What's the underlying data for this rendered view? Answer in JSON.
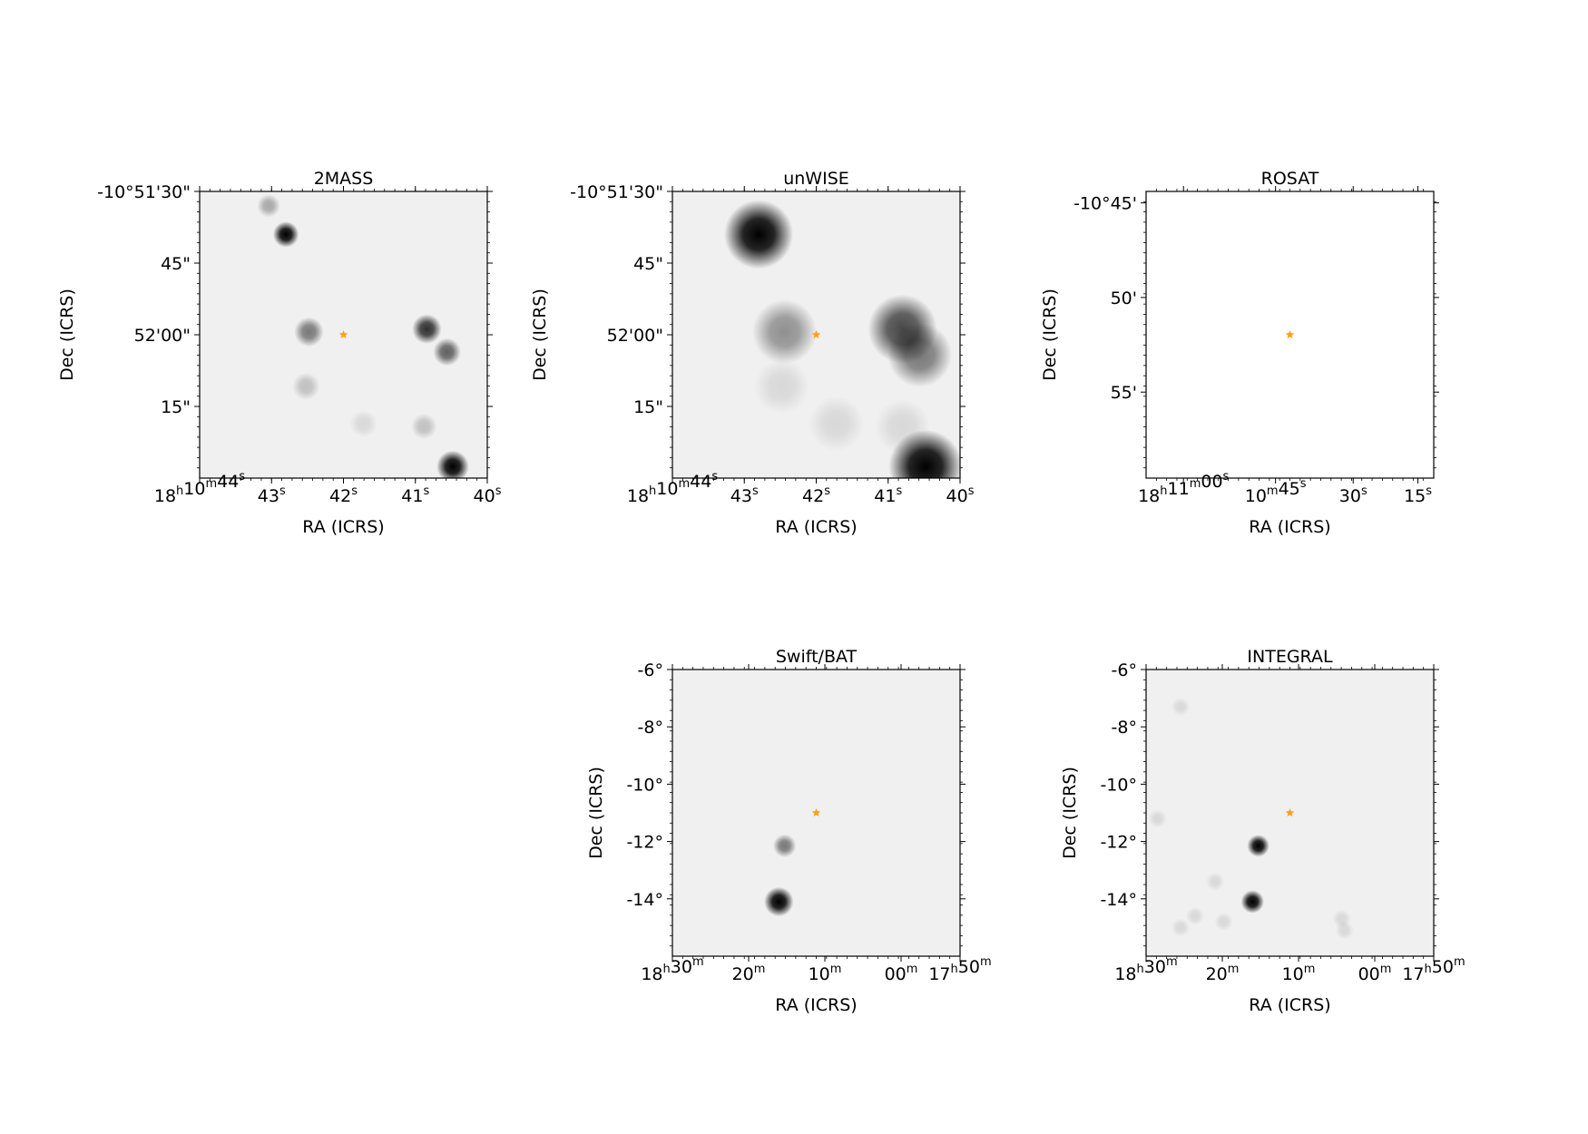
{
  "figure": {
    "panels": [
      {
        "id": "2mass",
        "title": "2MASS",
        "xlabel": "RA (ICRS)",
        "ylabel": "Dec (ICRS)",
        "xticks": [
          {
            "main": "18",
            "sup1": "h",
            "mid": "10",
            "sup2": "m",
            "mid2": "44",
            "sup3": "s",
            "f": 0.0
          },
          {
            "main": "43",
            "sup1": "s",
            "f": 0.25
          },
          {
            "main": "42",
            "sup1": "s",
            "f": 0.5
          },
          {
            "main": "41",
            "sup1": "s",
            "f": 0.75
          },
          {
            "main": "40",
            "sup1": "s",
            "f": 1.0
          }
        ],
        "yticks": [
          {
            "label": "-10°51'30\"",
            "f": 0.0
          },
          {
            "label": "45\"",
            "f": 0.25
          },
          {
            "label": "52'00\"",
            "f": 0.5
          },
          {
            "label": "15\"",
            "f": 0.75
          }
        ],
        "marker": {
          "fx": 0.5,
          "fy": 0.5
        },
        "sources": [
          {
            "fx": 0.3,
            "fy": 0.15,
            "r": 0.028,
            "intensity": 0.98
          },
          {
            "fx": 0.24,
            "fy": 0.05,
            "r": 0.025,
            "intensity": 0.25
          },
          {
            "fx": 0.38,
            "fy": 0.49,
            "r": 0.032,
            "intensity": 0.45
          },
          {
            "fx": 0.79,
            "fy": 0.48,
            "r": 0.032,
            "intensity": 0.75
          },
          {
            "fx": 0.86,
            "fy": 0.56,
            "r": 0.03,
            "intensity": 0.55
          },
          {
            "fx": 0.37,
            "fy": 0.68,
            "r": 0.03,
            "intensity": 0.18
          },
          {
            "fx": 0.57,
            "fy": 0.81,
            "r": 0.03,
            "intensity": 0.12
          },
          {
            "fx": 0.78,
            "fy": 0.82,
            "r": 0.028,
            "intensity": 0.15
          },
          {
            "fx": 0.88,
            "fy": 0.96,
            "r": 0.035,
            "intensity": 1.0
          }
        ]
      },
      {
        "id": "unwise",
        "title": "unWISE",
        "xlabel": "RA (ICRS)",
        "ylabel": "Dec (ICRS)",
        "xticks": [
          {
            "main": "18",
            "sup1": "h",
            "mid": "10",
            "sup2": "m",
            "mid2": "44",
            "sup3": "s",
            "f": 0.0
          },
          {
            "main": "43",
            "sup1": "s",
            "f": 0.25
          },
          {
            "main": "42",
            "sup1": "s",
            "f": 0.5
          },
          {
            "main": "41",
            "sup1": "s",
            "f": 0.75
          },
          {
            "main": "40",
            "sup1": "s",
            "f": 1.0
          }
        ],
        "yticks": [
          {
            "label": "-10°51'30\"",
            "f": 0.0
          },
          {
            "label": "45\"",
            "f": 0.25
          },
          {
            "label": "52'00\"",
            "f": 0.5
          },
          {
            "label": "15\"",
            "f": 0.75
          }
        ],
        "marker": {
          "fx": 0.5,
          "fy": 0.5
        },
        "sources": [
          {
            "fx": 0.3,
            "fy": 0.15,
            "r": 0.075,
            "intensity": 0.98
          },
          {
            "fx": 0.39,
            "fy": 0.49,
            "r": 0.07,
            "intensity": 0.35
          },
          {
            "fx": 0.8,
            "fy": 0.48,
            "r": 0.075,
            "intensity": 0.65
          },
          {
            "fx": 0.86,
            "fy": 0.57,
            "r": 0.07,
            "intensity": 0.45
          },
          {
            "fx": 0.38,
            "fy": 0.68,
            "r": 0.06,
            "intensity": 0.1
          },
          {
            "fx": 0.57,
            "fy": 0.81,
            "r": 0.06,
            "intensity": 0.08
          },
          {
            "fx": 0.8,
            "fy": 0.82,
            "r": 0.06,
            "intensity": 0.08
          },
          {
            "fx": 0.88,
            "fy": 0.96,
            "r": 0.08,
            "intensity": 1.0
          }
        ]
      },
      {
        "id": "rosat",
        "title": "ROSAT",
        "xlabel": "RA (ICRS)",
        "ylabel": "Dec (ICRS)",
        "xticks": [
          {
            "main": "18",
            "sup1": "h",
            "mid": "11",
            "sup2": "m",
            "mid2": "00",
            "sup3": "s",
            "f": 0.13
          },
          {
            "main": "10",
            "sup1": "m",
            "mid": "45",
            "sup2": "s",
            "f": 0.45
          },
          {
            "main": "30",
            "sup1": "s",
            "f": 0.72
          },
          {
            "main": "15",
            "sup1": "s",
            "f": 0.945
          }
        ],
        "yticks": [
          {
            "label": "-10°45'",
            "f": 0.04
          },
          {
            "label": "50'",
            "f": 0.37
          },
          {
            "label": "55'",
            "f": 0.7
          }
        ],
        "marker": {
          "fx": 0.5,
          "fy": 0.5
        },
        "sources": []
      },
      {
        "id": "swiftbat",
        "title": "Swift/BAT",
        "xlabel": "RA (ICRS)",
        "ylabel": "Dec (ICRS)",
        "xticks": [
          {
            "main": "18",
            "sup1": "h",
            "mid": "30",
            "sup2": "m",
            "f": 0.0
          },
          {
            "main": "20",
            "sup1": "m",
            "f": 0.265
          },
          {
            "main": "10",
            "sup1": "m",
            "f": 0.53
          },
          {
            "main": "00",
            "sup1": "m",
            "f": 0.795
          },
          {
            "main": "17",
            "sup1": "h",
            "mid": "50",
            "sup2": "m",
            "f": 1.0
          }
        ],
        "yticks": [
          {
            "label": "-6°",
            "f": 0.0
          },
          {
            "label": "-8°",
            "f": 0.2
          },
          {
            "label": "-10°",
            "f": 0.4
          },
          {
            "label": "-12°",
            "f": 0.6
          },
          {
            "label": "-14°",
            "f": 0.8
          }
        ],
        "marker": {
          "fx": 0.5,
          "fy": 0.5
        },
        "sources": [
          {
            "fx": 0.39,
            "fy": 0.615,
            "r": 0.025,
            "intensity": 0.45
          },
          {
            "fx": 0.37,
            "fy": 0.81,
            "r": 0.032,
            "intensity": 1.0
          }
        ]
      },
      {
        "id": "integral",
        "title": "INTEGRAL",
        "xlabel": "RA (ICRS)",
        "ylabel": "Dec (ICRS)",
        "xticks": [
          {
            "main": "18",
            "sup1": "h",
            "mid": "30",
            "sup2": "m",
            "f": 0.0
          },
          {
            "main": "20",
            "sup1": "m",
            "f": 0.265
          },
          {
            "main": "10",
            "sup1": "m",
            "f": 0.53
          },
          {
            "main": "00",
            "sup1": "m",
            "f": 0.795
          },
          {
            "main": "17",
            "sup1": "h",
            "mid": "50",
            "sup2": "m",
            "f": 1.0
          }
        ],
        "yticks": [
          {
            "label": "-6°",
            "f": 0.0
          },
          {
            "label": "-8°",
            "f": 0.2
          },
          {
            "label": "-10°",
            "f": 0.4
          },
          {
            "label": "-12°",
            "f": 0.6
          },
          {
            "label": "-14°",
            "f": 0.8
          }
        ],
        "marker": {
          "fx": 0.5,
          "fy": 0.5
        },
        "sources": [
          {
            "fx": 0.39,
            "fy": 0.615,
            "r": 0.024,
            "intensity": 1.0
          },
          {
            "fx": 0.37,
            "fy": 0.81,
            "r": 0.025,
            "intensity": 1.0
          },
          {
            "fx": 0.12,
            "fy": 0.13,
            "r": 0.02,
            "intensity": 0.08
          },
          {
            "fx": 0.24,
            "fy": 0.74,
            "r": 0.02,
            "intensity": 0.1
          },
          {
            "fx": 0.17,
            "fy": 0.86,
            "r": 0.02,
            "intensity": 0.08
          },
          {
            "fx": 0.27,
            "fy": 0.88,
            "r": 0.02,
            "intensity": 0.1
          },
          {
            "fx": 0.68,
            "fy": 0.87,
            "r": 0.02,
            "intensity": 0.08
          },
          {
            "fx": 0.69,
            "fy": 0.91,
            "r": 0.02,
            "intensity": 0.12
          },
          {
            "fx": 0.12,
            "fy": 0.9,
            "r": 0.02,
            "intensity": 0.08
          },
          {
            "fx": 0.04,
            "fy": 0.52,
            "r": 0.02,
            "intensity": 0.06
          }
        ]
      }
    ],
    "colors": {
      "background": "#ffffff",
      "survey_background": "#f0f0f0",
      "rosat_background": "#ffffff",
      "marker": "#ff9f1c",
      "axis": "#000000"
    }
  }
}
